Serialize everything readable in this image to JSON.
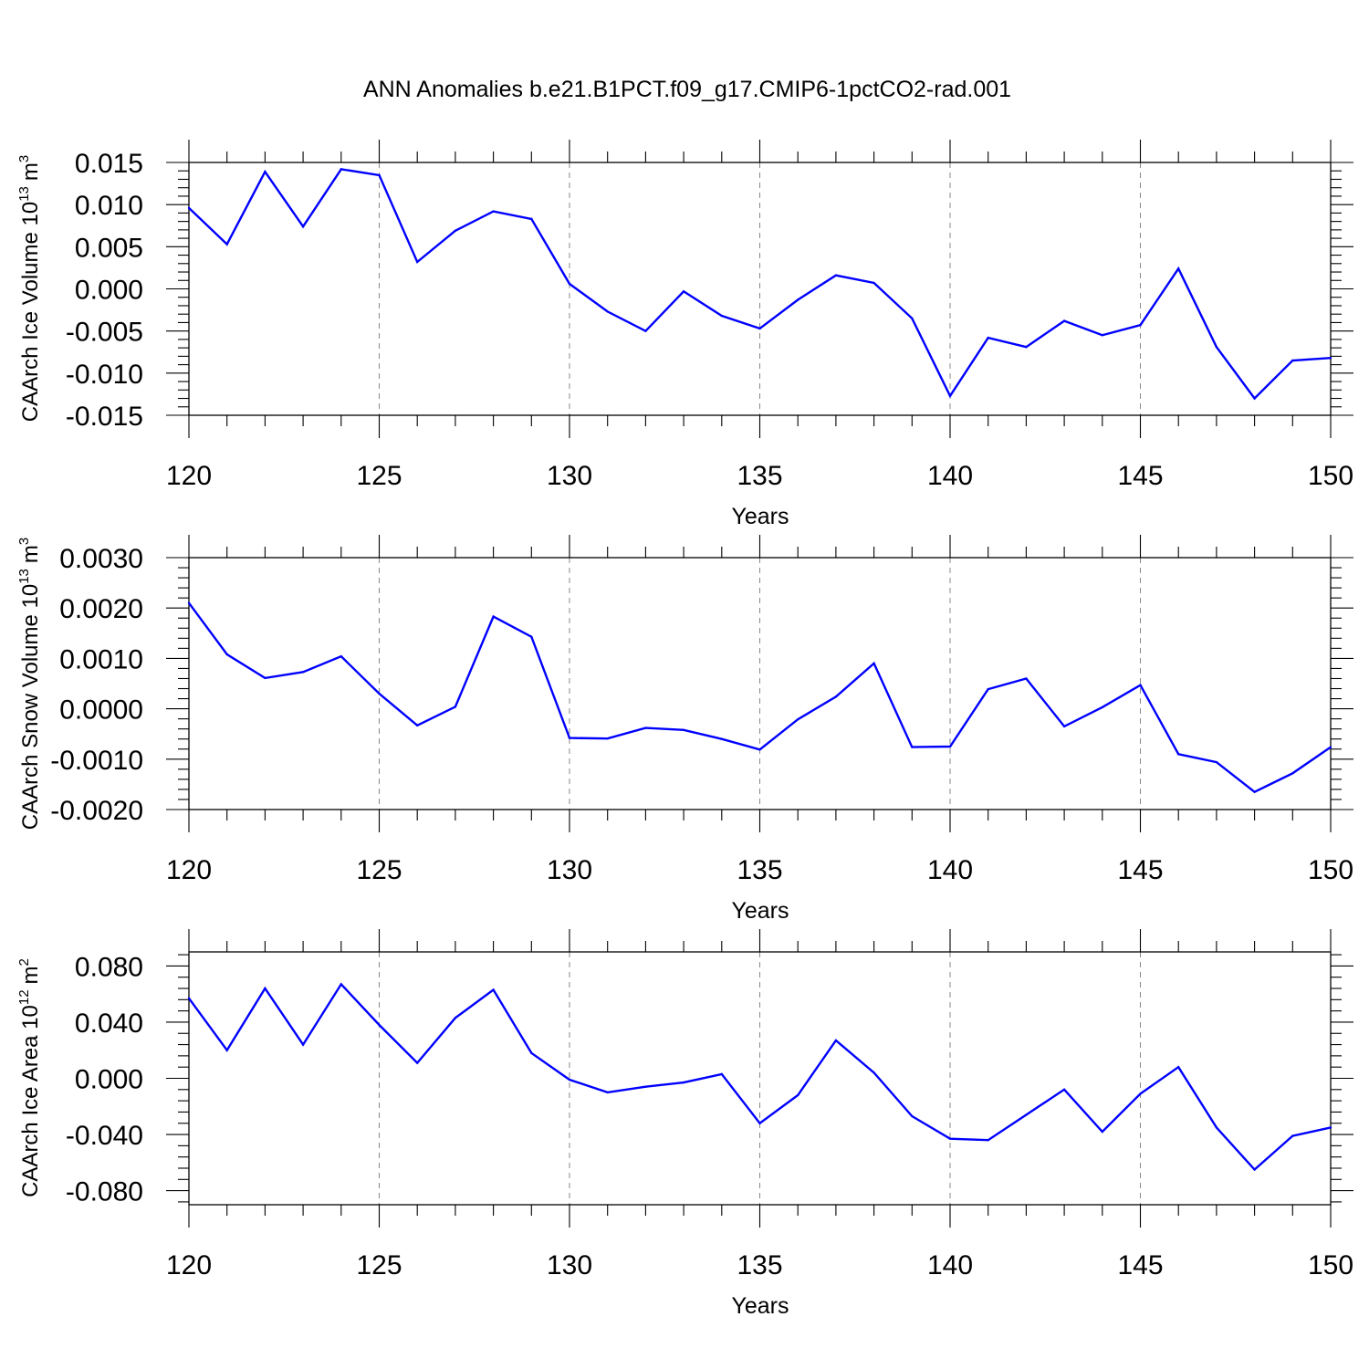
{
  "title": "ANN Anomalies b.e21.B1PCT.f09_g17.CMIP6-1pctCO2-rad.001",
  "line_color": "#0000ff",
  "chart_data": [
    {
      "type": "line",
      "title": "",
      "xlabel": "Years",
      "ylabel_main": "CAArch Ice Volume 10",
      "ylabel_exp": "13",
      "ylabel_unit": "m",
      "ylabel_unit_exp": "3",
      "xlim": [
        120,
        150
      ],
      "ylim": [
        -0.015,
        0.015
      ],
      "grid": "vertical dashed at major x ticks",
      "xticks": [
        {
          "value": 120,
          "label": "120"
        },
        {
          "value": 125,
          "label": "125"
        },
        {
          "value": 130,
          "label": "130"
        },
        {
          "value": 135,
          "label": "135"
        },
        {
          "value": 140,
          "label": "140"
        },
        {
          "value": 145,
          "label": "145"
        },
        {
          "value": 150,
          "label": "150"
        }
      ],
      "yticks": [
        {
          "value": 0.015,
          "label": "0.015"
        },
        {
          "value": 0.01,
          "label": "0.010"
        },
        {
          "value": 0.005,
          "label": "0.005"
        },
        {
          "value": 0.0,
          "label": "0.000"
        },
        {
          "value": -0.005,
          "label": "-0.005"
        },
        {
          "value": -0.01,
          "label": "-0.010"
        },
        {
          "value": -0.015,
          "label": "-0.015"
        }
      ],
      "x": [
        120,
        121,
        122,
        123,
        124,
        125,
        126,
        127,
        128,
        129,
        130,
        131,
        132,
        133,
        134,
        135,
        136,
        137,
        138,
        139,
        140,
        141,
        142,
        143,
        144,
        145,
        146,
        147,
        148,
        149,
        150
      ],
      "values": [
        0.0096,
        0.0053,
        0.0139,
        0.0074,
        0.0142,
        0.0135,
        0.0032,
        0.0069,
        0.0092,
        0.0083,
        0.0006,
        -0.0027,
        -0.005,
        -0.0003,
        -0.0032,
        -0.0047,
        -0.0013,
        0.0016,
        0.0007,
        -0.0035,
        -0.0127,
        -0.0058,
        -0.0069,
        -0.0038,
        -0.0055,
        -0.0043,
        0.0024,
        -0.0069,
        -0.013,
        -0.0085,
        -0.0082
      ]
    },
    {
      "type": "line",
      "title": "",
      "xlabel": "Years",
      "ylabel_main": "CAArch Snow Volume 10",
      "ylabel_exp": "13",
      "ylabel_unit": "m",
      "ylabel_unit_exp": "3",
      "xlim": [
        120,
        150
      ],
      "ylim": [
        -0.002,
        0.003
      ],
      "grid": "vertical dashed at major x ticks",
      "xticks": [
        {
          "value": 120,
          "label": "120"
        },
        {
          "value": 125,
          "label": "125"
        },
        {
          "value": 130,
          "label": "130"
        },
        {
          "value": 135,
          "label": "135"
        },
        {
          "value": 140,
          "label": "140"
        },
        {
          "value": 145,
          "label": "145"
        },
        {
          "value": 150,
          "label": "150"
        }
      ],
      "yticks": [
        {
          "value": 0.003,
          "label": "0.0030"
        },
        {
          "value": 0.002,
          "label": "0.0020"
        },
        {
          "value": 0.001,
          "label": "0.0010"
        },
        {
          "value": 0.0,
          "label": "0.0000"
        },
        {
          "value": -0.001,
          "label": "-0.0010"
        },
        {
          "value": -0.002,
          "label": "-0.0020"
        }
      ],
      "x": [
        120,
        121,
        122,
        123,
        124,
        125,
        126,
        127,
        128,
        129,
        130,
        131,
        132,
        133,
        134,
        135,
        136,
        137,
        138,
        139,
        140,
        141,
        142,
        143,
        144,
        145,
        146,
        147,
        148,
        149,
        150
      ],
      "values": [
        0.0021,
        0.00108,
        0.00061,
        0.00073,
        0.00104,
        0.0003,
        -0.00033,
        4e-05,
        0.00183,
        0.00143,
        -0.00058,
        -0.00059,
        -0.00038,
        -0.00042,
        -0.0006,
        -0.00081,
        -0.00021,
        0.00024,
        0.0009,
        -0.00076,
        -0.00075,
        0.00039,
        0.0006,
        -0.00035,
        3e-05,
        0.00047,
        -0.0009,
        -0.00106,
        -0.00165,
        -0.00128,
        -0.00076
      ]
    },
    {
      "type": "line",
      "title": "",
      "xlabel": "Years",
      "ylabel_main": "CAArch Ice Area 10",
      "ylabel_exp": "12",
      "ylabel_unit": "m",
      "ylabel_unit_exp": "2",
      "xlim": [
        120,
        150
      ],
      "ylim": [
        -0.09,
        0.09
      ],
      "grid": "vertical dashed at major x ticks",
      "xticks": [
        {
          "value": 120,
          "label": "120"
        },
        {
          "value": 125,
          "label": "125"
        },
        {
          "value": 130,
          "label": "130"
        },
        {
          "value": 135,
          "label": "135"
        },
        {
          "value": 140,
          "label": "140"
        },
        {
          "value": 145,
          "label": "145"
        },
        {
          "value": 150,
          "label": "150"
        }
      ],
      "yticks": [
        {
          "value": 0.08,
          "label": "0.080"
        },
        {
          "value": 0.04,
          "label": "0.040"
        },
        {
          "value": 0.0,
          "label": "0.000"
        },
        {
          "value": -0.04,
          "label": "-0.040"
        },
        {
          "value": -0.08,
          "label": "-0.080"
        }
      ],
      "x": [
        120,
        121,
        122,
        123,
        124,
        125,
        126,
        127,
        128,
        129,
        130,
        131,
        132,
        133,
        134,
        135,
        136,
        137,
        138,
        139,
        140,
        141,
        142,
        143,
        144,
        145,
        146,
        147,
        148,
        149,
        150
      ],
      "values": [
        0.057,
        0.02,
        0.064,
        0.024,
        0.067,
        0.038,
        0.011,
        0.043,
        0.063,
        0.018,
        -0.001,
        -0.01,
        -0.006,
        -0.003,
        0.003,
        -0.032,
        -0.012,
        0.027,
        0.004,
        -0.027,
        -0.043,
        -0.044,
        -0.026,
        -0.008,
        -0.038,
        -0.011,
        0.008,
        -0.035,
        -0.065,
        -0.041,
        -0.035
      ]
    }
  ]
}
